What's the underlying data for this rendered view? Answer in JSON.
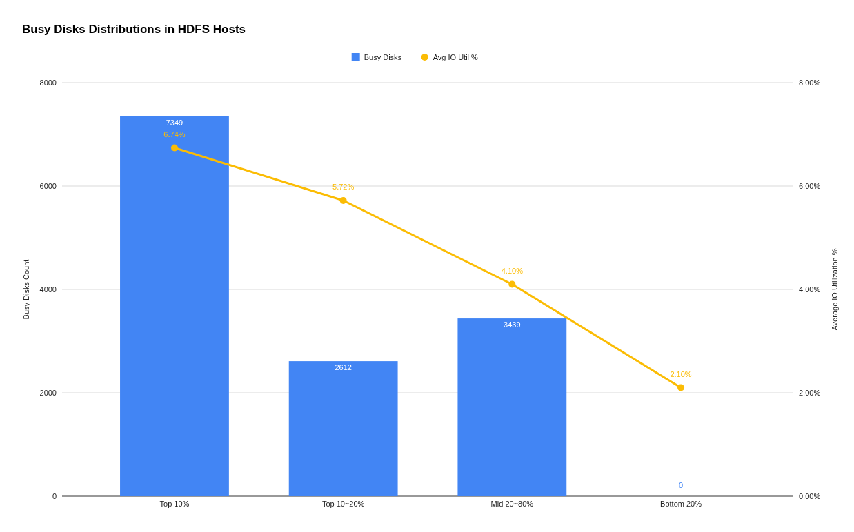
{
  "chart_data": {
    "type": "bar",
    "title": "Busy Disks Distributions in HDFS Hosts",
    "ylabel": "Busy Disks Count",
    "y2label": "Average IO Utilization %",
    "categories": [
      "Top 10%",
      "Top 10~20%",
      "Mid 20~80%",
      "Bottom 20%"
    ],
    "series": [
      {
        "name": "Busy Disks",
        "color": "#4285f4",
        "values": [
          7349,
          2612,
          3439,
          0
        ],
        "value_labels": [
          "7349",
          "2612",
          "3439",
          "0"
        ]
      },
      {
        "name": "Avg IO Util %",
        "type": "line",
        "axis": "y2",
        "color": "#fbbc04",
        "marker": "circle",
        "values": [
          6.74,
          5.72,
          4.1,
          2.1
        ],
        "value_labels": [
          "6.74%",
          "5.72%",
          "4.10%",
          "2.10%"
        ]
      }
    ],
    "ylim": [
      0,
      8000
    ],
    "yticks": [
      0,
      2000,
      4000,
      6000,
      8000
    ],
    "y2lim": [
      0,
      8
    ],
    "y2ticks": [
      {
        "value": 0,
        "label": "0.00%"
      },
      {
        "value": 2,
        "label": "2.00%"
      },
      {
        "value": 4,
        "label": "4.00%"
      },
      {
        "value": 6,
        "label": "6.00%"
      },
      {
        "value": 8,
        "label": "8.00%"
      }
    ],
    "grid": "y",
    "legend": "top"
  }
}
